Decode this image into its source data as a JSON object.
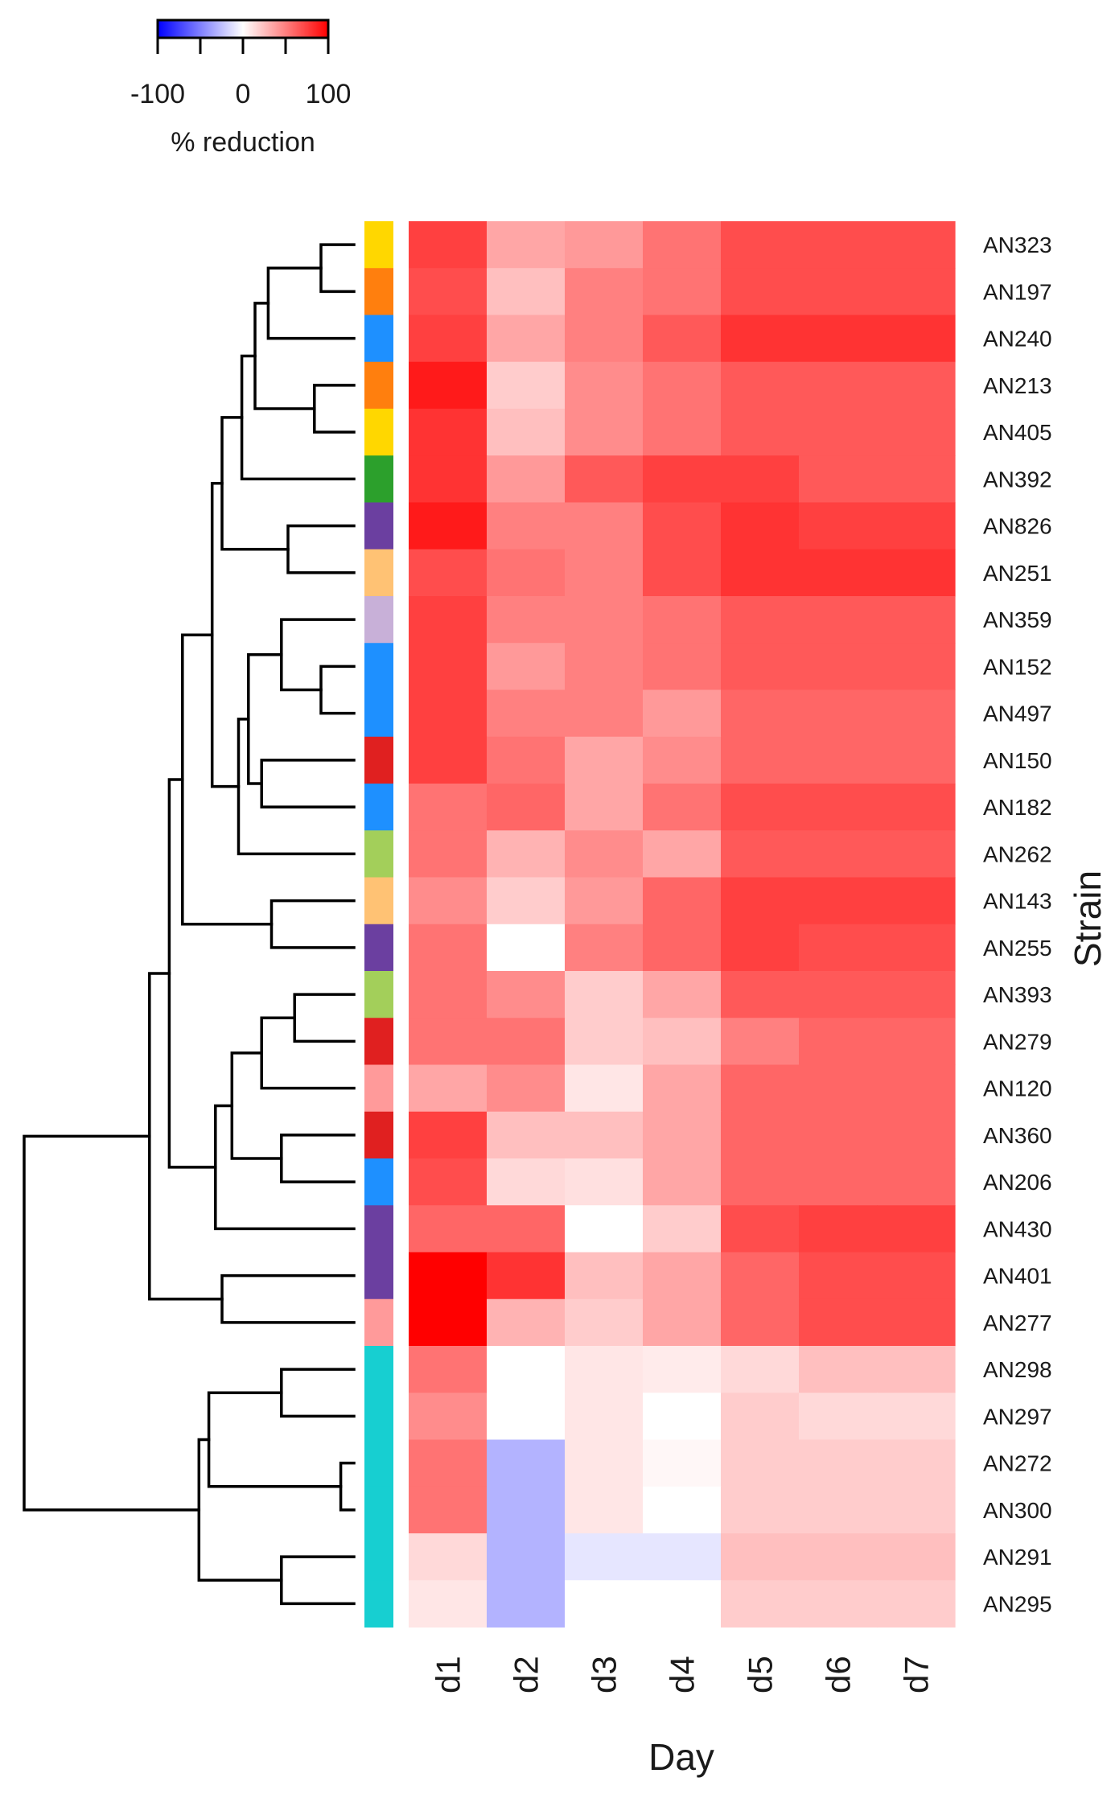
{
  "chart_data": {
    "type": "heatmap",
    "title": "",
    "xlabel": "Day",
    "ylabel": "Strain",
    "columns": [
      "d1",
      "d2",
      "d3",
      "d4",
      "d5",
      "d6",
      "d7"
    ],
    "rows": [
      "AN323",
      "AN197",
      "AN240",
      "AN213",
      "AN405",
      "AN392",
      "AN826",
      "AN251",
      "AN359",
      "AN152",
      "AN497",
      "AN150",
      "AN182",
      "AN262",
      "AN143",
      "AN255",
      "AN393",
      "AN279",
      "AN120",
      "AN360",
      "AN206",
      "AN430",
      "AN401",
      "AN277",
      "AN298",
      "AN297",
      "AN272",
      "AN300",
      "AN291",
      "AN295"
    ],
    "values": [
      [
        75,
        35,
        40,
        55,
        70,
        70,
        70
      ],
      [
        70,
        25,
        50,
        55,
        70,
        70,
        70
      ],
      [
        75,
        35,
        50,
        65,
        80,
        80,
        80
      ],
      [
        90,
        20,
        45,
        55,
        65,
        65,
        65
      ],
      [
        80,
        25,
        45,
        55,
        65,
        65,
        65
      ],
      [
        80,
        40,
        65,
        75,
        75,
        65,
        65
      ],
      [
        90,
        50,
        50,
        70,
        80,
        75,
        75
      ],
      [
        70,
        55,
        50,
        70,
        80,
        80,
        80
      ],
      [
        75,
        50,
        50,
        55,
        65,
        65,
        65
      ],
      [
        75,
        40,
        50,
        55,
        65,
        65,
        65
      ],
      [
        75,
        50,
        50,
        40,
        60,
        60,
        60
      ],
      [
        75,
        55,
        35,
        45,
        60,
        60,
        60
      ],
      [
        55,
        60,
        35,
        55,
        70,
        70,
        70
      ],
      [
        55,
        30,
        45,
        35,
        65,
        65,
        65
      ],
      [
        45,
        20,
        40,
        60,
        75,
        75,
        75
      ],
      [
        55,
        0,
        50,
        60,
        75,
        70,
        70
      ],
      [
        55,
        45,
        20,
        35,
        65,
        65,
        65
      ],
      [
        55,
        55,
        20,
        25,
        50,
        60,
        60
      ],
      [
        35,
        45,
        10,
        35,
        60,
        60,
        60
      ],
      [
        75,
        25,
        25,
        35,
        60,
        60,
        60
      ],
      [
        70,
        15,
        12,
        35,
        60,
        60,
        60
      ],
      [
        60,
        60,
        0,
        20,
        70,
        75,
        75
      ],
      [
        100,
        80,
        25,
        35,
        60,
        70,
        70
      ],
      [
        100,
        30,
        20,
        35,
        60,
        70,
        70
      ],
      [
        55,
        0,
        10,
        8,
        15,
        25,
        25
      ],
      [
        45,
        0,
        10,
        0,
        20,
        15,
        15
      ],
      [
        55,
        -30,
        10,
        3,
        20,
        20,
        20
      ],
      [
        55,
        -30,
        10,
        0,
        20,
        20,
        20
      ],
      [
        15,
        -30,
        -10,
        -10,
        25,
        25,
        25
      ],
      [
        10,
        -30,
        0,
        0,
        20,
        20,
        20
      ]
    ],
    "row_group_colors": [
      "#FFD700",
      "#FF7F0E",
      "#1E90FF",
      "#FF7F0E",
      "#FFD700",
      "#2CA02C",
      "#6B3FA0",
      "#FFC274",
      "#C8B0D8",
      "#1E90FF",
      "#1E90FF",
      "#E02020",
      "#1E90FF",
      "#A3CF5A",
      "#FFC274",
      "#6B3FA0",
      "#A3CF5A",
      "#E02020",
      "#FF9A9A",
      "#E02020",
      "#1E90FF",
      "#6B3FA0",
      "#6B3FA0",
      "#FF9A9A",
      "#17CFD1",
      "#17CFD1",
      "#17CFD1",
      "#17CFD1",
      "#17CFD1",
      "#17CFD1"
    ],
    "color_scale": {
      "min": -100,
      "max": 100,
      "low_color": "#0000FF",
      "mid_color": "#FFFFFF",
      "high_color": "#FF0000",
      "legend_title": "% reduction",
      "legend_ticks": [
        "-100",
        "0",
        "100"
      ]
    },
    "dendrogram": {
      "merges": [
        {
          "a": 3,
          "b": 4,
          "height": 0.12
        },
        {
          "a": 0,
          "b": 1,
          "height": 0.1
        },
        {
          "a": 9,
          "b": 10,
          "height": 0.1
        },
        {
          "a": 6,
          "b": 7,
          "height": 0.2
        },
        {
          "a": 26,
          "b": 27,
          "height": 0.04
        },
        {
          "a": 8,
          "b": 9,
          "height": 0.22
        },
        {
          "a": 14,
          "b": 15,
          "height": 0.25
        },
        {
          "a": 16,
          "b": 17,
          "height": 0.18
        },
        {
          "a": 19,
          "b": 20,
          "height": 0.22
        },
        {
          "a": 22,
          "b": 23,
          "height": 0.4
        },
        {
          "a": 24,
          "b": 25,
          "height": 0.22
        },
        {
          "a": 28,
          "b": 29,
          "height": 0.22
        },
        {
          "a": 11,
          "b": 12,
          "height": 0.28
        },
        {
          "a": 0,
          "b": 2,
          "height": 0.26
        },
        {
          "a": 0,
          "b": 3,
          "height": 0.3
        },
        {
          "a": 16,
          "b": 18,
          "height": 0.28
        },
        {
          "a": 0,
          "b": 5,
          "height": 0.34
        },
        {
          "a": 8,
          "b": 11,
          "height": 0.32
        },
        {
          "a": 8,
          "b": 13,
          "height": 0.35
        },
        {
          "a": 0,
          "b": 6,
          "height": 0.4
        },
        {
          "a": 16,
          "b": 19,
          "height": 0.37
        },
        {
          "a": 0,
          "b": 8,
          "height": 0.43
        },
        {
          "a": 16,
          "b": 21,
          "height": 0.42
        },
        {
          "a": 24,
          "b": 26,
          "height": 0.44
        },
        {
          "a": 24,
          "b": 28,
          "height": 0.47
        },
        {
          "a": 0,
          "b": 14,
          "height": 0.52
        },
        {
          "a": 0,
          "b": 16,
          "height": 0.56
        },
        {
          "a": 0,
          "b": 22,
          "height": 0.62
        },
        {
          "a": 0,
          "b": 24,
          "height": 1.0
        }
      ]
    }
  }
}
